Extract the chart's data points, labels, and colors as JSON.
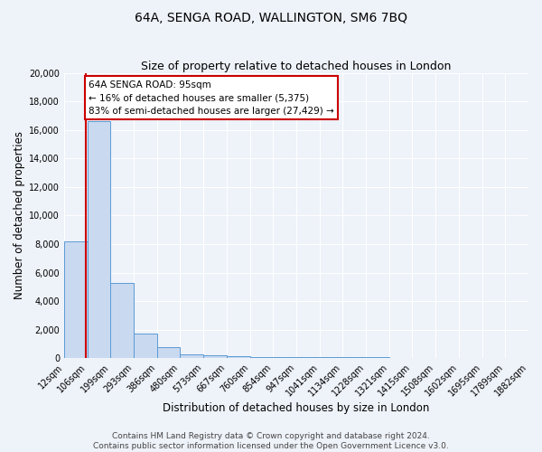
{
  "title": "64A, SENGA ROAD, WALLINGTON, SM6 7BQ",
  "subtitle": "Size of property relative to detached houses in London",
  "xlabel": "Distribution of detached houses by size in London",
  "ylabel": "Number of detached properties",
  "bin_labels": [
    "12sqm",
    "106sqm",
    "199sqm",
    "293sqm",
    "386sqm",
    "480sqm",
    "573sqm",
    "667sqm",
    "760sqm",
    "854sqm",
    "947sqm",
    "1041sqm",
    "1134sqm",
    "1228sqm",
    "1321sqm",
    "1415sqm",
    "1508sqm",
    "1602sqm",
    "1695sqm",
    "1789sqm",
    "1882sqm"
  ],
  "bar_heights": [
    8200,
    16600,
    5300,
    1750,
    750,
    280,
    200,
    130,
    100,
    80,
    70,
    60,
    55,
    50,
    45,
    40,
    35,
    30,
    25,
    20
  ],
  "property_bar_index": 0.95,
  "property_line_color": "#cc0000",
  "bar_fill_color": "#c9d9f0",
  "bar_edge_color": "#5b9bd5",
  "annotation_text": "64A SENGA ROAD: 95sqm\n← 16% of detached houses are smaller (5,375)\n83% of semi-detached houses are larger (27,429) →",
  "annotation_box_color": "#ffffff",
  "annotation_box_edge": "#cc0000",
  "ylim": [
    0,
    20000
  ],
  "yticks": [
    0,
    2000,
    4000,
    6000,
    8000,
    10000,
    12000,
    14000,
    16000,
    18000,
    20000
  ],
  "footer_line1": "Contains HM Land Registry data © Crown copyright and database right 2024.",
  "footer_line2": "Contains public sector information licensed under the Open Government Licence v3.0.",
  "bg_color": "#eef2f9",
  "plot_bg_color": "#eef2f9",
  "grid_color": "#ffffff",
  "title_fontsize": 10,
  "subtitle_fontsize": 9,
  "axis_label_fontsize": 8.5,
  "tick_fontsize": 7,
  "footer_fontsize": 6.5
}
